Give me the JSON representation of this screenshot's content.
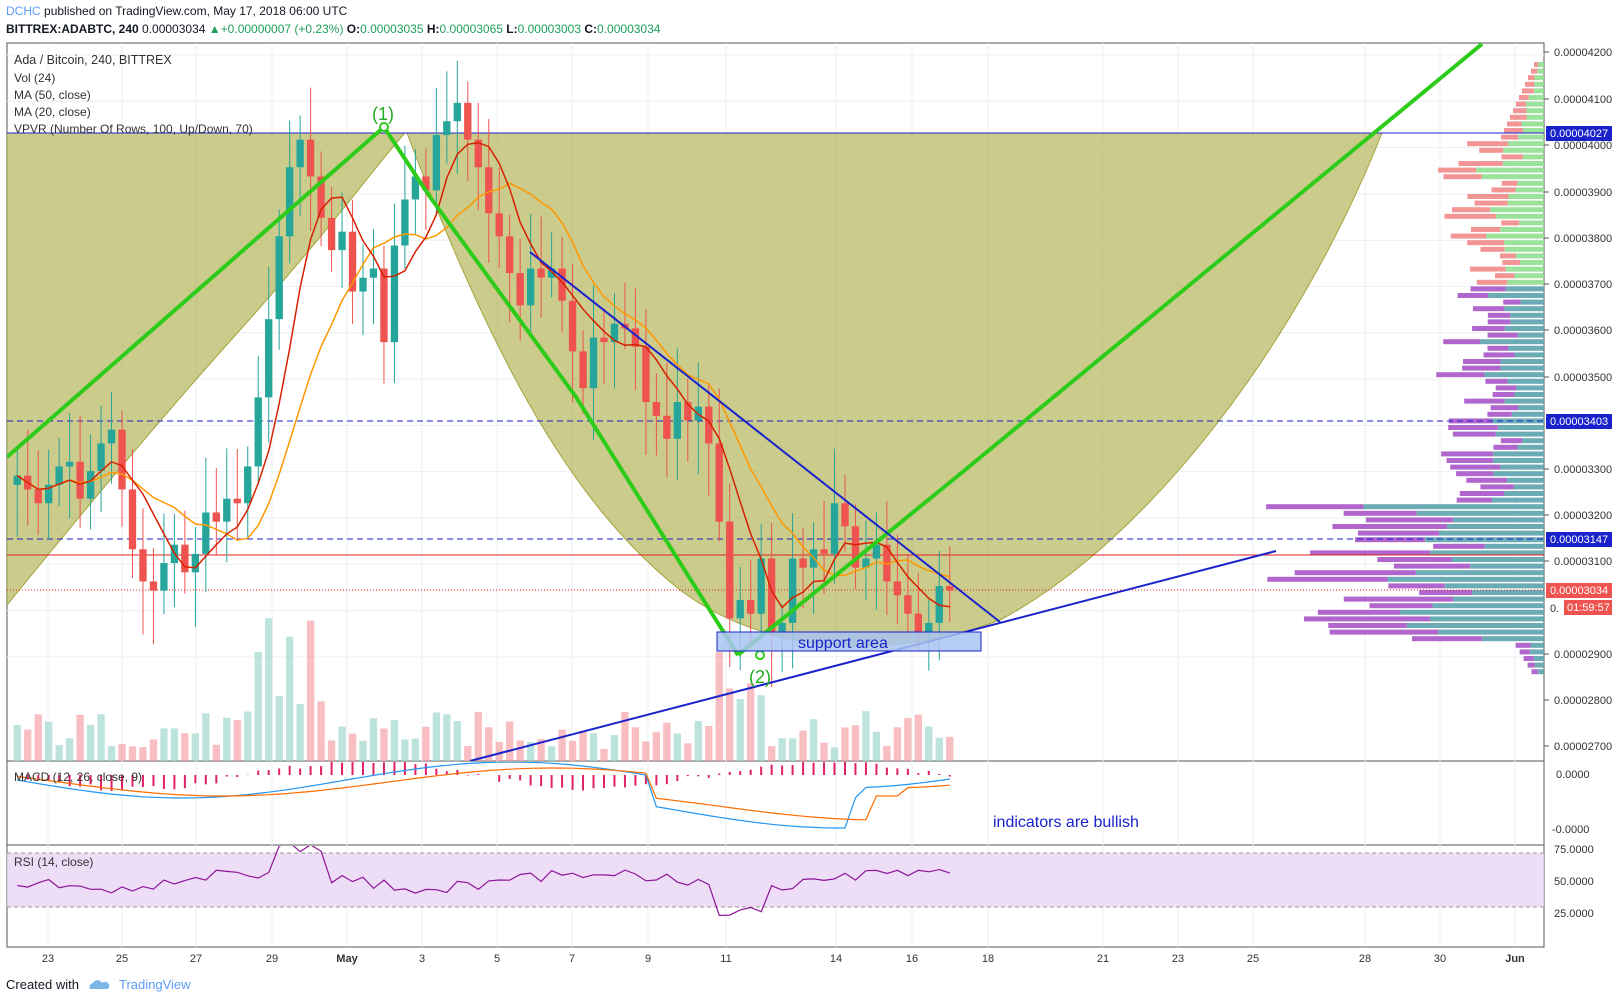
{
  "header": {
    "author": "DCHC",
    "published_text": "published on TradingView.com, May 17, 2018 06:00 UTC",
    "symbol": "BITTREX:ADABTC, 240",
    "last": "0.00003034",
    "change_arrow": "▲",
    "change": "+0.00000007 (+0.23%)",
    "o_label": "O:",
    "o_value": "0.00003035",
    "h_label": "H:",
    "h_value": "0.00003065",
    "l_label": "L:",
    "l_value": "0.00003003",
    "c_label": "C:",
    "c_value": "0.00003034"
  },
  "legend": {
    "title": "Ada / Bitcoin, 240, BITTREX",
    "vol": "Vol (24)",
    "ma50": "MA (50, close)",
    "ma20": "MA (20, close)",
    "vpvr": "VPVR (Number Of Rows, 100, Up/Down, 70)"
  },
  "annotations": {
    "point1": "(1)",
    "point2": "(2)",
    "support": "support area",
    "bullish": "indicators are bullish"
  },
  "macd_label": "MACD (12, 26, close, 9)",
  "rsi_label": "RSI (14, close)",
  "price_axis": [
    "0.00004200",
    "0.00004100",
    "0.00004000",
    "0.00003900",
    "0.00003800",
    "0.00003700",
    "0.00003600",
    "0.00003500",
    "0.00003300",
    "0.00003200",
    "0.00003100",
    "0.00002900",
    "0.00002800",
    "0.00002700"
  ],
  "price_tags": {
    "p4027": "0.00004027",
    "p3403": "0.00003403",
    "p3147": "0.00003147",
    "p3034": "0.00003034",
    "timer": "01:59:57",
    "partial": "0."
  },
  "macd_axis": [
    "0.0000",
    "-0.0000"
  ],
  "rsi_axis": [
    "75.0000",
    "50.0000",
    "25.0000"
  ],
  "time_axis": [
    "23",
    "25",
    "27",
    "29",
    "May",
    "3",
    "5",
    "7",
    "9",
    "11",
    "14",
    "16",
    "18",
    "21",
    "23",
    "25",
    "28",
    "30",
    "Jun"
  ],
  "footer": {
    "created": "Created with",
    "tv": "TradingView"
  },
  "colors": {
    "up": "#26a69a",
    "down": "#ef5350",
    "ma20": "#e02020",
    "ma50": "#ff9800",
    "green_line": "#2ecc1a",
    "trend_blue": "#1a22cc",
    "cup_fill": "#b5b55a",
    "rsi_band": "#e8d5f5",
    "macd_hist_neg": "#e0206a",
    "macd_line": "#2196f3",
    "signal_line": "#ff6d00"
  },
  "chart_data": {
    "type": "candlestick",
    "symbol": "ADABTC",
    "exchange": "BITTREX",
    "interval": "240",
    "ylim": [
      2.66e-05,
      4.22e-05
    ],
    "levels": {
      "resistance_top": 4.027e-05,
      "dashed_1": 3.403e-05,
      "dashed_2": 3.147e-05,
      "current": 3.034e-05,
      "red_line": 3.11e-05
    },
    "support_area": {
      "from": 2.94e-05,
      "to": 2.96e-05
    },
    "point_1": {
      "date": "May 2",
      "price": 4.03e-05
    },
    "point_2": {
      "date": "May 12",
      "price": 2.89e-05
    },
    "closes": [
      3.28e-05,
      3.25e-05,
      3.22e-05,
      3.26e-05,
      3.3e-05,
      3.31e-05,
      3.23e-05,
      3.29e-05,
      3.35e-05,
      3.38e-05,
      3.25e-05,
      3.12e-05,
      3.05e-05,
      3.03e-05,
      3.09e-05,
      3.13e-05,
      3.07e-05,
      3.11e-05,
      3.2e-05,
      3.18e-05,
      3.23e-05,
      3.22e-05,
      3.3e-05,
      3.45e-05,
      3.62e-05,
      3.8e-05,
      3.95e-05,
      4.01e-05,
      3.93e-05,
      3.84e-05,
      3.77e-05,
      3.81e-05,
      3.68e-05,
      3.71e-05,
      3.73e-05,
      3.57e-05,
      3.78e-05,
      3.88e-05,
      3.93e-05,
      3.9e-05,
      4.02e-05,
      4.05e-05,
      4.09e-05,
      4.01e-05,
      3.95e-05,
      3.85e-05,
      3.8e-05,
      3.72e-05,
      3.65e-05,
      3.73e-05,
      3.71e-05,
      3.73e-05,
      3.66e-05,
      3.55e-05,
      3.47e-05,
      3.58e-05,
      3.57e-05,
      3.61e-05,
      3.6e-05,
      3.56e-05,
      3.44e-05,
      3.41e-05,
      3.36e-05,
      3.44e-05,
      3.4e-05,
      3.43e-05,
      3.35e-05,
      3.18e-05,
      2.97e-05,
      3.01e-05,
      2.98e-05,
      3.1e-05,
      2.94e-05,
      2.96e-05,
      3.1e-05,
      3.08e-05,
      3.12e-05,
      3.11e-05,
      3.22e-05,
      3.17e-05,
      3.08e-05,
      3.1e-05,
      3.13e-05,
      3.05e-05,
      3.02e-05,
      2.98e-05,
      2.94e-05,
      2.96e-05,
      3.04e-05,
      3.03e-05
    ],
    "macd_label": "MACD (12, 26, close, 9)",
    "rsi_label": "RSI (14, close)",
    "rsi_range": [
      25,
      75
    ]
  }
}
